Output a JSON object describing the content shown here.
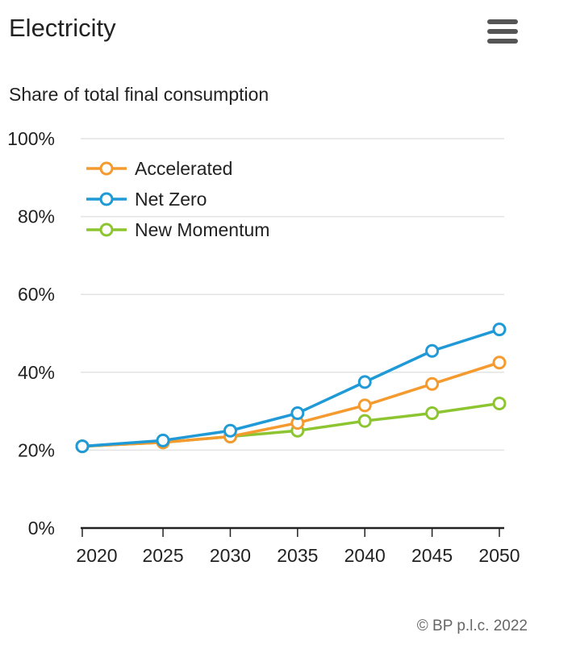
{
  "header": {
    "title": "Electricity",
    "menu_icon": "hamburger-menu-icon"
  },
  "footer": {
    "copyright": "© BP p.l.c. 2022"
  },
  "chart_data": {
    "type": "line",
    "title": "Electricity",
    "subtitle": "Share of total final consumption",
    "xlabel": "",
    "ylabel": "",
    "x": [
      2019,
      2025,
      2030,
      2035,
      2040,
      2045,
      2050
    ],
    "x_ticks": [
      2020,
      2025,
      2030,
      2035,
      2040,
      2045,
      2050
    ],
    "x_tick_labels": [
      "2020",
      "2025",
      "2030",
      "2035",
      "2040",
      "2045",
      "2050"
    ],
    "y_ticks": [
      0,
      20,
      40,
      60,
      80,
      100
    ],
    "y_tick_labels": [
      "0%",
      "20%",
      "40%",
      "60%",
      "80%",
      "100%"
    ],
    "xlim": [
      2019,
      2050
    ],
    "ylim": [
      0,
      100
    ],
    "grid": true,
    "legend_position": "top-left",
    "series": [
      {
        "name": "Accelerated",
        "color": "#f59a2e",
        "values": [
          21,
          22,
          23.5,
          27,
          31.5,
          37,
          42.5
        ]
      },
      {
        "name": "Net Zero",
        "color": "#1f9ad6",
        "values": [
          21,
          22.5,
          25,
          29.5,
          37.5,
          45.5,
          51
        ]
      },
      {
        "name": "New Momentum",
        "color": "#8dc530",
        "values": [
          21,
          22,
          23.5,
          25,
          27.5,
          29.5,
          32
        ]
      }
    ]
  }
}
